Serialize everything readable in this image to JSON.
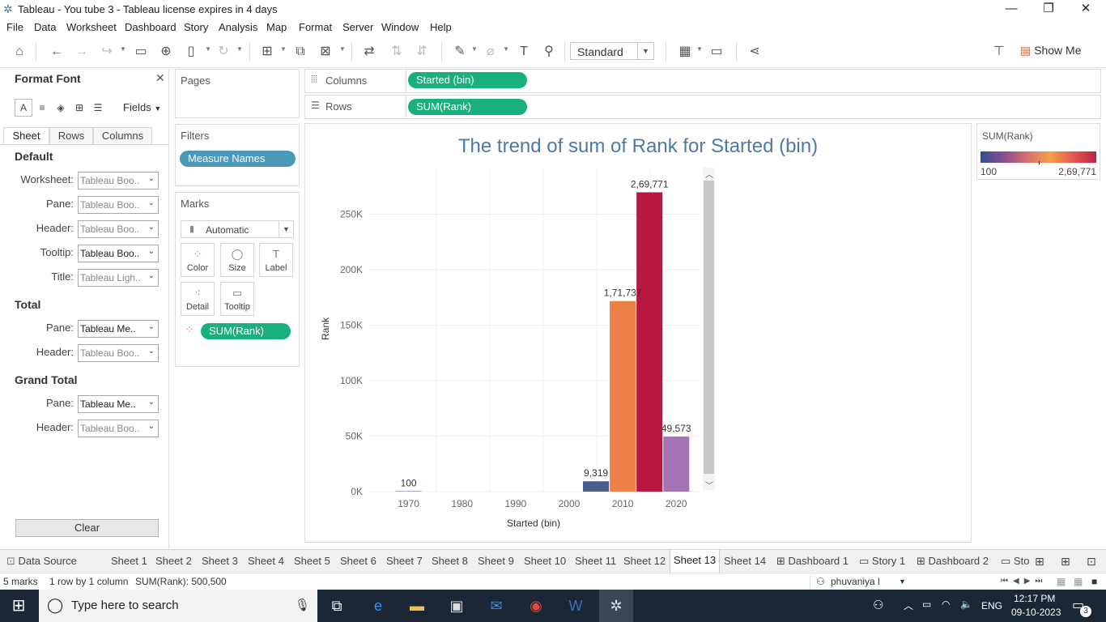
{
  "window": {
    "title": "Tableau - You tube 3 - Tableau license expires in 4 days",
    "controls": {
      "minimize": "—",
      "restore": "❐",
      "close": "✕"
    }
  },
  "menu": [
    "File",
    "Data",
    "Worksheet",
    "Dashboard",
    "Story",
    "Analysis",
    "Map",
    "Format",
    "Server",
    "Window",
    "Help"
  ],
  "toolbar": {
    "fit_value": "Standard",
    "show_me_label": "Show Me"
  },
  "format_pane": {
    "title": "Format Font",
    "fields_dropdown": "Fields",
    "tabs": [
      "Sheet",
      "Rows",
      "Columns"
    ],
    "active_tab": "Sheet",
    "sections": {
      "default": {
        "heading": "Default",
        "rows": [
          {
            "label": "Worksheet:",
            "value": "Tableau Boo.."
          },
          {
            "label": "Pane:",
            "value": "Tableau Boo.."
          },
          {
            "label": "Header:",
            "value": "Tableau Boo.."
          },
          {
            "label": "Tooltip:",
            "value": "Tableau Boo.."
          },
          {
            "label": "Title:",
            "value": "Tableau Ligh.."
          }
        ]
      },
      "total": {
        "heading": "Total",
        "rows": [
          {
            "label": "Pane:",
            "value": "Tableau Me.."
          },
          {
            "label": "Header:",
            "value": "Tableau Boo.."
          }
        ]
      },
      "grand_total": {
        "heading": "Grand Total",
        "rows": [
          {
            "label": "Pane:",
            "value": "Tableau Me.."
          },
          {
            "label": "Header:",
            "value": "Tableau Boo.."
          }
        ]
      }
    },
    "clear_label": "Clear"
  },
  "cards": {
    "pages_title": "Pages",
    "filters_title": "Filters",
    "filter_pill": "Measure Names",
    "marks_title": "Marks",
    "mark_type": "Automatic",
    "mark_buttons": [
      "Color",
      "Size",
      "Label",
      "Detail",
      "Tooltip"
    ],
    "marks_pill": "SUM(Rank)"
  },
  "shelves": {
    "columns_label": "Columns",
    "columns_pill": "Started (bin)",
    "rows_label": "Rows",
    "rows_pill": "SUM(Rank)"
  },
  "legend": {
    "title": "SUM(Rank)",
    "min_label": "100",
    "max_label": "2,69,771"
  },
  "chart_data": {
    "type": "bar",
    "title": "The trend of sum of Rank for Started (bin)",
    "xlabel": "Started (bin)",
    "ylabel": "Rank",
    "x_ticks": [
      "1970",
      "1980",
      "1990",
      "2000",
      "2010",
      "2020"
    ],
    "y_ticks": [
      "0K",
      "50K",
      "100K",
      "150K",
      "200K",
      "250K"
    ],
    "ylim": [
      0,
      292000
    ],
    "bars": [
      {
        "bin": 1970,
        "value": 100,
        "label": "100",
        "color": "#4e5f8f"
      },
      {
        "bin": 2005,
        "value": 9319,
        "label": "9,319",
        "color": "#4a5f8e"
      },
      {
        "bin": 2010,
        "value": 171737,
        "label": "1,71,737",
        "color": "#ec8147"
      },
      {
        "bin": 2015,
        "value": 269771,
        "label": "2,69,771",
        "color": "#b81741"
      },
      {
        "bin": 2020,
        "value": 49573,
        "label": "49,573",
        "color": "#a373b5"
      }
    ]
  },
  "sheet_tabs": [
    "Data Source",
    "Sheet 1",
    "Sheet 2",
    "Sheet 3",
    "Sheet 4",
    "Sheet 5",
    "Sheet 6",
    "Sheet 7",
    "Sheet 8",
    "Sheet 9",
    "Sheet 10",
    "Sheet 11",
    "Sheet 12",
    "Sheet 13",
    "Sheet 14",
    "Dashboard 1",
    "Story 1",
    "Dashboard 2",
    "Sto"
  ],
  "active_sheet": "Sheet 13",
  "status": {
    "marks": "5 marks",
    "rows_cols": "1 row by 1 column",
    "sum": "SUM(Rank): 500,500",
    "user": "phuvaniya l"
  },
  "taskbar": {
    "search_placeholder": "Type here to search",
    "language": "ENG",
    "time": "12:17 PM",
    "date": "09-10-2023",
    "notification_count": "3"
  }
}
